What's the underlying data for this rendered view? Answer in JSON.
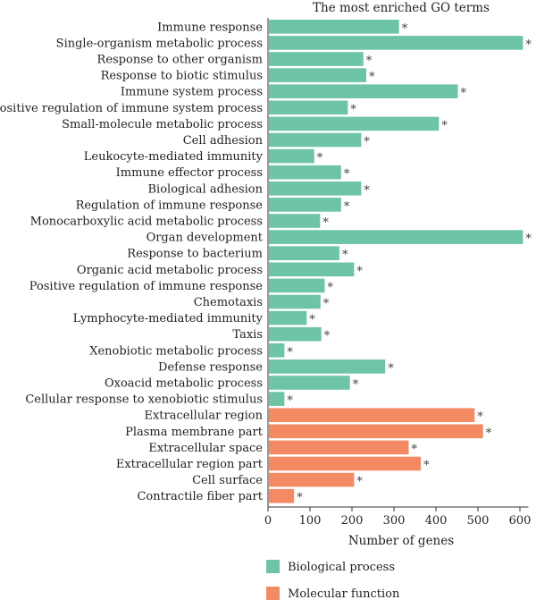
{
  "chart_data": {
    "type": "bar",
    "orientation": "horizontal",
    "title": "The most enriched GO terms",
    "xlabel": "Number of genes",
    "ylabel": "",
    "xlim": [
      0,
      620
    ],
    "xticks": [
      "0",
      "100",
      "200",
      "300",
      "400",
      "500",
      "600"
    ],
    "grid": false,
    "legend_position": "bottom-left",
    "categories": [
      "Immune response",
      "Single-organism metabolic process",
      "Response to other organism",
      "Response to biotic stimulus",
      "Immune system process",
      "Positive regulation of immune system process",
      "Small-molecule metabolic process",
      "Cell adhesion",
      "Leukocyte-mediated immunity",
      "Immune effector process",
      "Biological adhesion",
      "Regulation of immune response",
      "Monocarboxylic acid metabolic process",
      "Organ development",
      "Response to bacterium",
      "Organic acid metabolic process",
      "Positive regulation of immune response",
      "Chemotaxis",
      "Lymphocyte-mediated immunity",
      "Taxis",
      "Xenobiotic metabolic process",
      "Defense response",
      "Oxoacid metabolic process",
      "Cellular response to xenobiotic stimulus",
      "Extracellular region",
      "Plasma membrane part",
      "Extracellular space",
      "Extracellular region part",
      "Cell surface",
      "Contractile fiber part"
    ],
    "values": [
      310,
      605,
      225,
      232,
      450,
      188,
      405,
      220,
      108,
      172,
      220,
      172,
      122,
      605,
      168,
      203,
      133,
      123,
      90,
      125,
      37,
      277,
      193,
      37,
      490,
      510,
      333,
      362,
      203,
      60
    ],
    "groups": [
      0,
      0,
      0,
      0,
      0,
      0,
      0,
      0,
      0,
      0,
      0,
      0,
      0,
      0,
      0,
      0,
      0,
      0,
      0,
      0,
      0,
      0,
      0,
      0,
      1,
      1,
      1,
      1,
      1,
      1
    ],
    "significance_mark": "*",
    "series": [
      {
        "name": "Biological process",
        "color": "#6dc5a5"
      },
      {
        "name": "Molecular function",
        "color": "#f48a64"
      }
    ]
  }
}
